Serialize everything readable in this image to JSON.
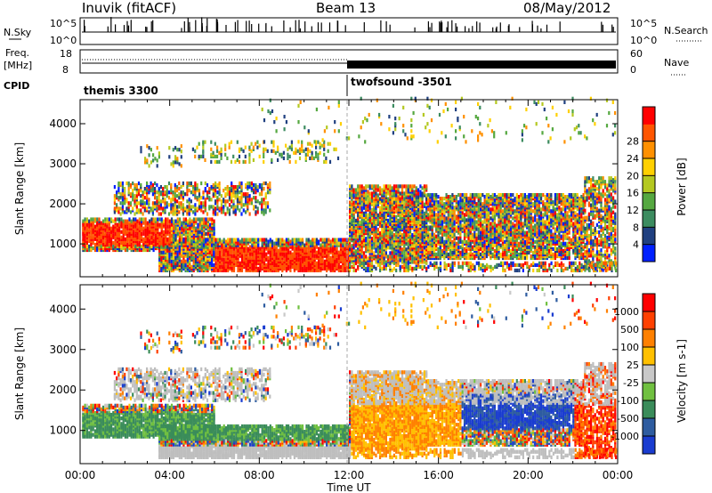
{
  "header": {
    "site": "Inuvik (fitACF)",
    "beam": "Beam 13",
    "date": "08/May/2012"
  },
  "strips": {
    "nsky_label": "N.Sky",
    "nsearch_label": "N.Search",
    "nsky_ticks": [
      "10^5",
      "10^0"
    ],
    "freq_label": "Freq.",
    "freq_unit": "[MHz]",
    "freq_ticks": [
      "18",
      "8"
    ],
    "nave_label": "Nave",
    "nave_ticks": [
      "60",
      "0"
    ],
    "cpid_label": "CPID",
    "cpid_segments": [
      {
        "name": "themis 3300",
        "start_hour": 0,
        "end_hour": 12
      },
      {
        "name": "twofsound -3501",
        "start_hour": 12,
        "end_hour": 24
      }
    ]
  },
  "chart_data": [
    {
      "type": "heatmap",
      "title": "",
      "xlabel": "Time UT",
      "ylabel": "Slant Range [km]",
      "xlim_hours": [
        0,
        24
      ],
      "x_ticks": [
        "00:00",
        "04:00",
        "08:00",
        "12:00",
        "16:00",
        "20:00",
        "00:00"
      ],
      "ylim": [
        180,
        4600
      ],
      "y_ticks": [
        1000,
        2000,
        3000,
        4000
      ],
      "colorbar": {
        "label": "Power [dB]",
        "ticks": [
          4,
          8,
          12,
          16,
          20,
          24,
          28
        ],
        "colors": [
          "#0020ff",
          "#204080",
          "#3c8c60",
          "#55a840",
          "#b4c820",
          "#ffd000",
          "#ff9000",
          "#ff5500",
          "#ff0000"
        ]
      }
    },
    {
      "type": "heatmap",
      "title": "",
      "xlabel": "Time UT",
      "ylabel": "Slant Range [km]",
      "xlim_hours": [
        0,
        24
      ],
      "x_ticks": [
        "00:00",
        "04:00",
        "08:00",
        "12:00",
        "16:00",
        "20:00",
        "00:00"
      ],
      "ylim": [
        180,
        4600
      ],
      "y_ticks": [
        1000,
        2000,
        3000,
        4000
      ],
      "colorbar": {
        "label": "Velocity [m s-1]",
        "ticks": [
          "1000",
          "500",
          "100",
          "25",
          "-25",
          "-100",
          "-500",
          "-1000"
        ],
        "colors": [
          "#1a3cd0",
          "#2e5ca0",
          "#3a8c5a",
          "#70c040",
          "#c8c8c8",
          "#ffc000",
          "#ff8000",
          "#ff4000",
          "#ff0000"
        ]
      }
    }
  ],
  "colors": {
    "ground_scatter": "#bebebe",
    "frame": "#000000"
  }
}
